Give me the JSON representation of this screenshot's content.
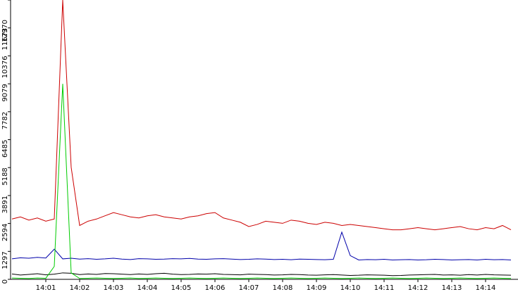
{
  "chart_data": {
    "type": "line",
    "categories": [
      null,
      null,
      null,
      null,
      "14:01",
      null,
      null,
      null,
      "14:02",
      null,
      null,
      null,
      "14:03",
      null,
      null,
      null,
      "14:04",
      null,
      null,
      null,
      "14:05",
      null,
      null,
      null,
      "14:06",
      null,
      null,
      null,
      "14:07",
      null,
      null,
      null,
      "14:08",
      null,
      null,
      null,
      "14:09",
      null,
      null,
      null,
      "14:10",
      null,
      null,
      null,
      "14:11",
      null,
      null,
      null,
      "14:12",
      null,
      null,
      null,
      "14:13",
      null,
      null,
      null,
      "14:14",
      null,
      null,
      null
    ],
    "series": [
      {
        "color": "#cc0000",
        "values": [
          2800,
          2900,
          2750,
          2850,
          2700,
          2800,
          12970,
          5200,
          2500,
          2700,
          2800,
          2950,
          3100,
          3000,
          2900,
          2850,
          2950,
          3000,
          2900,
          2850,
          2800,
          2900,
          2950,
          3050,
          3100,
          2850,
          2750,
          2650,
          2450,
          2550,
          2700,
          2650,
          2600,
          2750,
          2700,
          2600,
          2550,
          2650,
          2600,
          2500,
          2550,
          2500,
          2450,
          2400,
          2350,
          2300,
          2300,
          2350,
          2400,
          2350,
          2300,
          2350,
          2400,
          2450,
          2350,
          2300,
          2400,
          2350,
          2500,
          2300
        ]
      },
      {
        "color": "#0000aa",
        "values": [
          950,
          1000,
          980,
          1020,
          990,
          1400,
          950,
          980,
          940,
          960,
          930,
          950,
          980,
          940,
          920,
          960,
          950,
          930,
          940,
          960,
          950,
          970,
          940,
          930,
          950,
          960,
          940,
          920,
          930,
          950,
          940,
          920,
          930,
          910,
          940,
          930,
          920,
          910,
          930,
          2190,
          1100,
          900,
          920,
          910,
          930,
          900,
          910,
          920,
          900,
          910,
          930,
          920,
          900,
          910,
          920,
          900,
          930,
          910,
          920,
          900
        ]
      },
      {
        "color": "#000000",
        "values": [
          250,
          200,
          230,
          260,
          210,
          240,
          300,
          280,
          220,
          250,
          230,
          270,
          260,
          240,
          220,
          250,
          230,
          260,
          280,
          240,
          220,
          230,
          250,
          240,
          260,
          230,
          220,
          210,
          240,
          230,
          220,
          200,
          210,
          230,
          220,
          200,
          190,
          210,
          220,
          200,
          180,
          190,
          210,
          200,
          190,
          170,
          180,
          200,
          210,
          220,
          230,
          200,
          210,
          190,
          220,
          200,
          230,
          210,
          200,
          190
        ]
      },
      {
        "color": "#00cc00",
        "values": [
          60,
          50,
          40,
          60,
          50,
          600,
          9079,
          300,
          40,
          50,
          60,
          50,
          40,
          50,
          60,
          40,
          50,
          60,
          50,
          40,
          50,
          60,
          50,
          40,
          50,
          60,
          50,
          40,
          50,
          60,
          50,
          40,
          50,
          60,
          50,
          40,
          50,
          60,
          50,
          40,
          50,
          60,
          50,
          40,
          50,
          60,
          50,
          40,
          50,
          60,
          50,
          40,
          50,
          60,
          50,
          40,
          50,
          60,
          50,
          40
        ]
      }
    ],
    "ylim": [
      0,
      12970
    ],
    "yticks": [
      0,
      1297,
      2594,
      3891,
      5188,
      6485,
      7782,
      9079,
      10376,
      11673,
      12970
    ]
  }
}
